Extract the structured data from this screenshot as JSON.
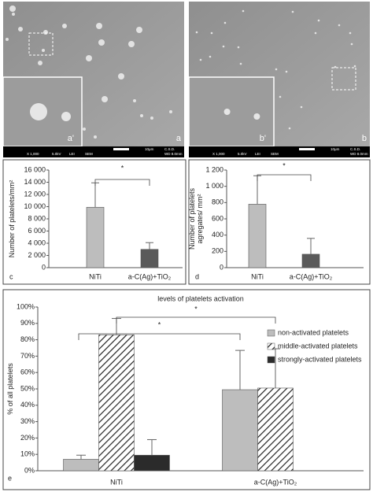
{
  "images": [
    {
      "label": "a",
      "inset_label": "a'",
      "magnification": "X 1,000",
      "voltage": "5.0kV",
      "mode": "LEI",
      "detector": "SEM",
      "scale": "10μm",
      "site": "C.S.D.",
      "wd": "WD 8.0mm"
    },
    {
      "label": "b",
      "inset_label": "b'",
      "magnification": "X 1,000",
      "voltage": "5.0kV",
      "mode": "LEI",
      "detector": "SEM",
      "scale": "10μm",
      "site": "C.S.D.",
      "wd": "WD 8.0mm"
    }
  ],
  "chart_data": [
    {
      "type": "bar",
      "panel": "c",
      "y_label": [
        "Number of platelets/mm²"
      ],
      "categories": [
        "NiTi",
        "a-C(Ag)+TiO₂"
      ],
      "values": [
        9900,
        3000
      ],
      "errors": [
        4000,
        1100
      ],
      "colors": [
        "#bdbdbd",
        "#5a5a5a"
      ],
      "significance": [
        "*"
      ],
      "ylim": [
        0,
        16000
      ],
      "yticks": [
        0,
        {
          "value": 2000,
          "label": "2 000"
        },
        {
          "value": 4000,
          "label": "4 000"
        },
        {
          "value": 6000,
          "label": "6 000"
        },
        {
          "value": 8000,
          "label": "8 000"
        },
        {
          "value": 10000,
          "label": "10 000"
        },
        {
          "value": 12000,
          "label": "12 000"
        },
        {
          "value": 14000,
          "label": "14 000"
        },
        {
          "value": 16000,
          "label": "16 000"
        }
      ]
    },
    {
      "type": "bar",
      "panel": "d",
      "y_label": [
        "Number of platelets",
        "agregates/ mm²"
      ],
      "categories": [
        "NiTi",
        "a-C(Ag)+TiO₂"
      ],
      "values": [
        780,
        165
      ],
      "errors": [
        350,
        195
      ],
      "colors": [
        "#bdbdbd",
        "#5a5a5a"
      ],
      "significance": [
        "*"
      ],
      "ylim": [
        0,
        1200
      ],
      "yticks": [
        0,
        200,
        400,
        600,
        800,
        {
          "value": 1000,
          "label": "1 000"
        },
        {
          "value": 1200,
          "label": "1 200"
        }
      ]
    },
    {
      "type": "grouped-bar",
      "panel": "e",
      "title": "levels of platelets activation",
      "y_label": [
        "% of all platelets"
      ],
      "categories": [
        "NiTi",
        "a-C(Ag)+TiO₂"
      ],
      "series": [
        {
          "name": "non-activated platelets",
          "color": "#bdbdbd",
          "values": [
            7,
            49.5
          ],
          "errors": [
            2.5,
            24
          ]
        },
        {
          "name": "middle-activated platelets",
          "color": "#ffffff",
          "hatch": true,
          "values": [
            83,
            50.5
          ],
          "errors": [
            10,
            24
          ]
        },
        {
          "name": "strongly-activated platelets",
          "color": "#2b2b2b",
          "values": [
            9.5,
            null
          ],
          "errors": [
            9.5,
            null
          ]
        }
      ],
      "significance": [
        "*",
        "*"
      ],
      "legend": "upper right",
      "ylim": [
        0,
        100
      ],
      "yticks": [
        {
          "value": 0,
          "label": "0%"
        },
        {
          "value": 10,
          "label": "10%"
        },
        {
          "value": 20,
          "label": "20%"
        },
        {
          "value": 30,
          "label": "30%"
        },
        {
          "value": 40,
          "label": "40%"
        },
        {
          "value": 50,
          "label": "50%"
        },
        {
          "value": 60,
          "label": "60%"
        },
        {
          "value": 70,
          "label": "70%"
        },
        {
          "value": 80,
          "label": "80%"
        },
        {
          "value": 90,
          "label": "90%"
        },
        {
          "value": 100,
          "label": "100%"
        }
      ]
    }
  ]
}
